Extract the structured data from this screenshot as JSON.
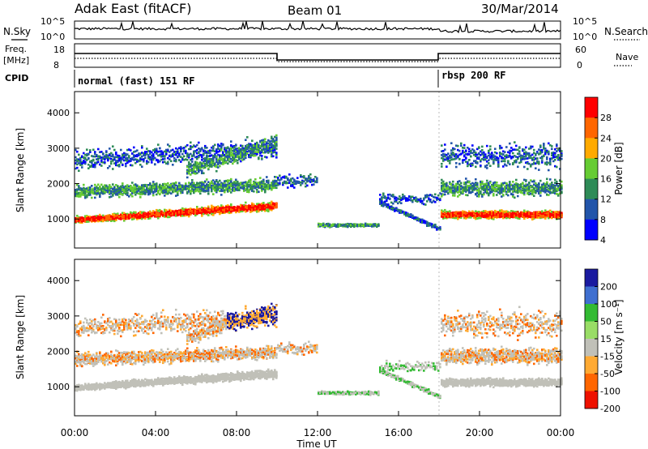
{
  "header": {
    "title": "Adak East (fitACF)",
    "beam": "Beam 01",
    "date": "30/Mar/2014"
  },
  "top_panels": {
    "nsky_label": "N.Sky",
    "nsearch_label": "N.Search",
    "nsky_left_ticks": [
      "10^5",
      "10^0"
    ],
    "nsky_right_ticks": [
      "10^5",
      "10^0"
    ],
    "freq_label": "Freq.",
    "freq_unit": "[MHz]",
    "freq_ticks": [
      "18",
      "8"
    ],
    "nave_label": "Nave",
    "nave_ticks": [
      "60",
      "0"
    ],
    "cpid_label": "CPID",
    "cpid_segments": [
      {
        "start_h": 0,
        "end_h": 18,
        "name": "normal (fast) 151 RF"
      },
      {
        "start_h": 18,
        "end_h": 24,
        "name": "rbsp 200 RF"
      }
    ]
  },
  "chart_data": [
    {
      "type": "heatmap",
      "title": "",
      "ylabel": "Slant Range [km]",
      "xlabel": "",
      "xlim_hours": [
        0,
        24
      ],
      "ylim": [
        180,
        4600
      ],
      "y_ticks": [
        "4000",
        "3000",
        "2000",
        "1000"
      ],
      "colorbar": {
        "label": "Power [dB]",
        "ticks": [
          "28",
          "24",
          "20",
          "16",
          "12",
          "8",
          "4"
        ],
        "colors": [
          "#ff0000",
          "#ff6600",
          "#ffaa00",
          "#66cc33",
          "#2e8b57",
          "#2255aa",
          "#0000ff"
        ]
      },
      "mode_change_hour": 18
    },
    {
      "type": "heatmap",
      "title": "",
      "ylabel": "Slant Range [km]",
      "xlabel": "Time UT",
      "xlim_hours": [
        0,
        24
      ],
      "ylim": [
        180,
        4600
      ],
      "y_ticks": [
        "4000",
        "3000",
        "2000",
        "1000"
      ],
      "x_ticks": [
        "00:00",
        "04:00",
        "08:00",
        "12:00",
        "16:00",
        "20:00",
        "00:00"
      ],
      "colorbar": {
        "label": "Velocity [m s⁻¹]",
        "ticks": [
          "200",
          "100",
          "50",
          "15",
          "-15",
          "-50",
          "-100",
          "-200"
        ],
        "colors": [
          "#1a1aa0",
          "#3f6fd0",
          "#33bb33",
          "#99dd66",
          "#c0c0b8",
          "#ffaa33",
          "#ff6600",
          "#ee1100"
        ]
      },
      "mode_change_hour": 18
    }
  ]
}
